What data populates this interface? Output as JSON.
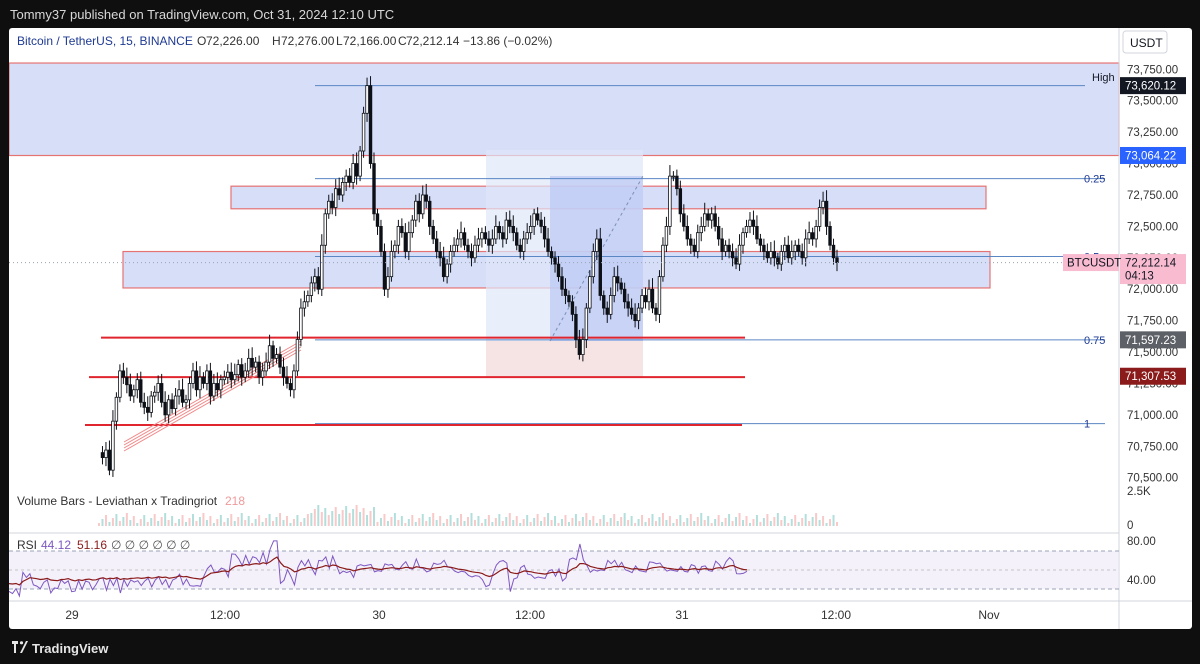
{
  "header": {
    "publisher_line": "Tommy37 published on TradingView.com, Oct 31, 2024 12:10 UTC"
  },
  "footer": {
    "brand": "TradingView"
  },
  "legend": {
    "symbol": "Bitcoin / TetherUS, 15, BINANCE",
    "o_label": "O",
    "o_value": "72,226.00",
    "h_label": "H",
    "h_value": "72,276.00",
    "l_label": "L",
    "l_value": "72,166.00",
    "c_label": "C",
    "c_value": "72,212.14",
    "change": "−13.86 (−0.02%)"
  },
  "chart_data": {
    "type": "candlestick",
    "symbol": "BTCUSDT",
    "currency": "USDT",
    "interval": "15",
    "ylim": [
      70450,
      73840
    ],
    "y_ticks": [
      "73,750.00",
      "73,500.00",
      "73,250.00",
      "73,000.00",
      "72,750.00",
      "72,500.00",
      "72,250.00",
      "72,000.00",
      "71,750.00",
      "71,500.00",
      "71,250.00",
      "71,000.00",
      "70,750.00",
      "70,500.00"
    ],
    "y_tick_values": [
      73750,
      73500,
      73250,
      73000,
      72750,
      72500,
      72250,
      72000,
      71750,
      71500,
      71250,
      71000,
      70750,
      70500
    ],
    "x_ticks": [
      "29",
      "12:00",
      "30",
      "12:00",
      "31",
      "12:00",
      "Nov"
    ],
    "price_labels": [
      {
        "text": "73,620.12",
        "value": 73620.12,
        "style": "dark"
      },
      {
        "text": "73,064.22",
        "value": 73064.22,
        "style": "blue"
      },
      {
        "text": "72,212.14",
        "value": 72212.14,
        "style": "current",
        "sub": "04:13",
        "tag": "BTCUSDT"
      },
      {
        "text": "71,597.23",
        "value": 71597.23,
        "style": "gray"
      },
      {
        "text": "71,307.53",
        "value": 71307.53,
        "style": "maroon"
      }
    ],
    "high_label": "High",
    "fib": [
      {
        "label": "0.25",
        "value": 72880
      },
      {
        "label": "0.5",
        "value": 72260
      },
      {
        "label": "0.75",
        "value": 71597
      },
      {
        "label": "1",
        "value": 70930
      }
    ],
    "zones": [
      {
        "from": 73064,
        "to": 73800,
        "color": "#c9d3f5"
      },
      {
        "from": 72640,
        "to": 72820,
        "color": "#c9d3f5"
      },
      {
        "from": 72010,
        "to": 72300,
        "color": "#c9d3f5"
      }
    ],
    "support_lines": [
      71615,
      71300,
      70920
    ],
    "price_series": [
      [
        70700,
        70660,
        70720,
        70560,
        70950,
        71140,
        71350,
        71300,
        71240,
        71150,
        71200,
        71280,
        71100,
        71060,
        71020,
        71150,
        71180,
        71250,
        71100,
        71000,
        71120,
        71050,
        71150,
        71200,
        71100,
        71120,
        71250,
        71350,
        71200,
        71300,
        71250,
        71350,
        71150,
        71250,
        71200,
        71280,
        71300,
        71340,
        71280,
        71320,
        71400,
        71300,
        71350,
        71450,
        71380,
        71420,
        71300,
        71350,
        71420,
        71550,
        71450,
        71480,
        71380,
        71300,
        71250,
        71200,
        71350,
        71600,
        71850,
        71900,
        71950,
        72050,
        72100,
        72000,
        72350,
        72600,
        72700,
        72650,
        72800,
        72750,
        72850,
        72900,
        72850,
        73000,
        72900,
        73100,
        73400,
        73620,
        73000,
        72600,
        72500,
        72300,
        72000,
        72100,
        72300,
        72350,
        72500,
        72450,
        72300,
        72450,
        72550,
        72700,
        72600,
        72750,
        72700,
        72500,
        72400,
        72300,
        72250,
        72100,
        72200,
        72300,
        72350,
        72400,
        72450,
        72350,
        72300,
        72250,
        72350,
        72400,
        72450,
        72400,
        72350,
        72400,
        72500,
        72450,
        72400,
        72550,
        72500,
        72450,
        72350,
        72300,
        72400,
        72450,
        72500,
        72600,
        72550,
        72500,
        72400,
        72300,
        72250,
        72200,
        72100,
        72000,
        71950,
        71900,
        71800,
        71600,
        71480,
        71600,
        71850,
        72100,
        72300,
        72400,
        71950,
        71850,
        71800,
        71950,
        72100,
        72050,
        72000,
        71900,
        71850,
        71800,
        71750,
        71850,
        71950,
        71900,
        72000,
        71850,
        71800,
        72100,
        72350,
        72500,
        72900,
        72900,
        72800,
        72600,
        72500,
        72400,
        72350,
        72300,
        72450,
        72500,
        72600,
        72550,
        72600,
        72500,
        72400,
        72300,
        72350,
        72300,
        72250,
        72200,
        72350,
        72450,
        72500,
        72550,
        72500,
        72400,
        72350,
        72300,
        72250,
        72300,
        72250,
        72200,
        72300,
        72350,
        72250,
        72300,
        72350,
        72300,
        72250,
        72400,
        72450,
        72400,
        72500,
        72650,
        72700,
        72500,
        72350,
        72250,
        72212
      ]
    ],
    "volume_study": {
      "title": "Volume Bars - Leviathan x Tradingriot",
      "value": "218",
      "axis_ticks": [
        "2.5K",
        "0"
      ]
    },
    "rsi_study": {
      "title": "RSI",
      "value1": "44.12",
      "value2": "51.16",
      "zeros": "∅ ∅ ∅ ∅ ∅     ∅",
      "axis_ticks": [
        "80.00",
        "40.00"
      ]
    }
  },
  "colors": {
    "zone_fill": "#c9d3f5",
    "zone_border": "#e57373",
    "support_line": "#e0252e",
    "fib_line": "#5b86c4",
    "candle_up": "#0d1117",
    "candle_down": "#0d1117",
    "rsi_line": "#7e57c2",
    "rsi_ma": "#8b1a1a",
    "volume_bar": "#b2dfdb",
    "current_price": "#f8bbd0"
  }
}
